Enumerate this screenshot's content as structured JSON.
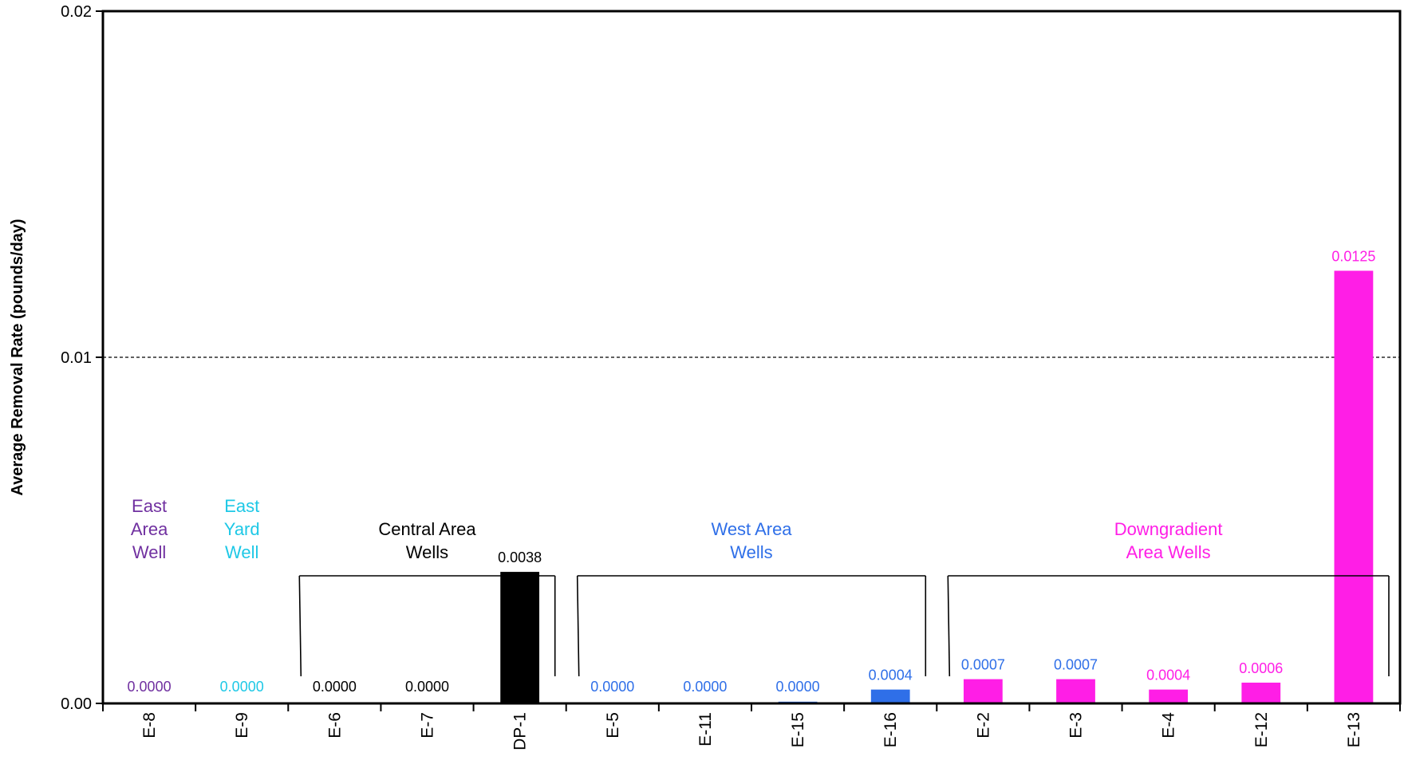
{
  "chart_data": {
    "type": "bar",
    "ylabel": "Average Removal Rate (pounds/day)",
    "ylim": [
      0,
      0.02
    ],
    "y_ticks": [
      "0.00",
      "0.01",
      "0.02"
    ],
    "y_tick_values": [
      0,
      0.01,
      0.02
    ],
    "reference_line": 0.01,
    "categories": [
      "E-8",
      "E-9",
      "E-6",
      "E-7",
      "DP-1",
      "E-5",
      "E-11",
      "E-15",
      "E-16",
      "E-2",
      "E-3",
      "E-4",
      "E-12",
      "E-13"
    ],
    "values": [
      0.0,
      0.0,
      0.0,
      0.0,
      0.0038,
      0.0,
      0.0,
      5e-05,
      0.0004,
      0.0007,
      0.0007,
      0.0004,
      0.0006,
      0.0125
    ],
    "value_labels": [
      "0.0000",
      "0.0000",
      "0.0000",
      "0.0000",
      "0.0038",
      "0.0000",
      "0.0000",
      "0.0000",
      "0.0004",
      "0.0007",
      "0.0007",
      "0.0004",
      "0.0006",
      "0.0125"
    ],
    "label_colors": [
      "#7030a0",
      "#1ec8e6",
      "#000000",
      "#000000",
      "#000000",
      "#2f6fe8",
      "#2f6fe8",
      "#2f6fe8",
      "#2f6fe8",
      "#2f6fe8",
      "#2f6fe8",
      "#ff1ee6",
      "#ff1ee6",
      "#ff1ee6"
    ],
    "bar_colors": [
      "#7030a0",
      "#1ec8e6",
      "#000000",
      "#000000",
      "#000000",
      "#2f6fe8",
      "#2f6fe8",
      "#2f6fe8",
      "#2f6fe8",
      "#ff1ee6",
      "#ff1ee6",
      "#ff1ee6",
      "#ff1ee6",
      "#ff1ee6"
    ],
    "groups": [
      {
        "lines": [
          "East",
          "Area",
          "Well"
        ],
        "color": "#7030a0",
        "start": 0,
        "end": 0,
        "bracket": false
      },
      {
        "lines": [
          "East",
          "Yard",
          "Well"
        ],
        "color": "#1ec8e6",
        "start": 1,
        "end": 1,
        "bracket": false
      },
      {
        "lines": [
          "Central Area",
          "Wells"
        ],
        "color": "#000000",
        "start": 2,
        "end": 4,
        "bracket": true
      },
      {
        "lines": [
          "West Area",
          "Wells"
        ],
        "color": "#2f6fe8",
        "start": 5,
        "end": 8,
        "bracket": true
      },
      {
        "lines": [
          "Downgradient",
          "Area Wells"
        ],
        "color": "#ff1ee6",
        "start": 9,
        "end": 13,
        "bracket": true
      }
    ]
  }
}
